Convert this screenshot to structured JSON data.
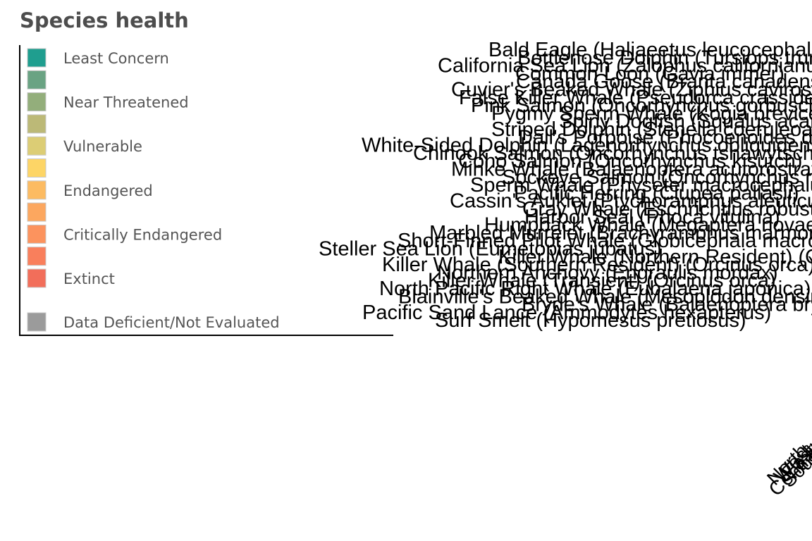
{
  "chart_data": {
    "type": "heatmap",
    "legend": {
      "title": "Species health",
      "placement": "top-left",
      "items": [
        {
          "label": "Least Concern",
          "color": "#1f9e8f"
        },
        {
          "label": "",
          "color": "#6aa383"
        },
        {
          "label": "Near Threatened",
          "color": "#93ae7b"
        },
        {
          "label": "",
          "color": "#bcb977"
        },
        {
          "label": "Vulnerable",
          "color": "#dccd75"
        },
        {
          "label": "",
          "color": "#fdd566"
        },
        {
          "label": "Endangered",
          "color": "#fcbb62"
        },
        {
          "label": "",
          "color": "#fca75f"
        },
        {
          "label": "Critically Endangered",
          "color": "#fc935e"
        },
        {
          "label": "",
          "color": "#f97f5c"
        },
        {
          "label": "Extinct",
          "color": "#f26e5a"
        },
        {
          "label": "Data Deficient/Not Evaluated",
          "color": "#9b9b9b"
        }
      ]
    },
    "y_tick_labels": [
      "Bald Eagle (Haliaeetus leucocephalus)",
      "Bottlenose Dolphin (Tursiops truncatus)",
      "California Sea Lion (Zalophus californianus)",
      "Common Loon (Gavia immer)",
      "Canada Goose (Branta canadensis)",
      "Cuvier's Beaked Whale (Ziphius cavirostris)",
      "False Killer Whale (Pseudorca crassidens)",
      "Pink Salmon (Oncorhynchus gorbuscha)",
      "Pygmy Sperm Whale (Kogia breviceps)",
      "Spiny Dogfish (Squalus acanthias)",
      "Striped Dolphin (Stenella coeruleoalba)",
      "Dall's Porpoise (Phocoenoides dalli)",
      "White-Sided Dolphin (Lagenorhynchus obliquidens)",
      "Chinook Salmon (Oncorhynchus tshawytscha)",
      "Coho Salmon (Oncorhynchus kisutch)",
      "Minke Whale (Balaenoptera acutorostrata)",
      "Sockeye Salmon (Oncorhynchus nerka)",
      "Sperm Whale (Physeter macrocephalus)",
      "Pacific Herring (Clupea pallasii)",
      "Cassin's Auklet (Ptychoramphus aleuticus)",
      "Gray Whale (Eschrichtius robustus)",
      "Harbor Seal (Phoca vitulina)",
      "Humpback Whale (Megaptera novaeangliae)",
      "Marbled Murrelet (Brachyramphus marmoratus)",
      "Short-Finned Pilot Whale (Globicephala macrorhynchus)",
      "Steller Sea Lion (Eumetopias jubatus)",
      "Killer Whale (Northern Resident) (Orcinus orca)",
      "Killer Whale (Southern Resident) (Orcinus orca)",
      "Northern Anchovy (Engraulis mordax)",
      "Killer Whale (Transient) (Orcinus orca)",
      "North Pacific Right Whale (Eubalaena japonica)",
      "Blainville's Beaked Whale (Mesoplodon densirostris)",
      "Bryde's Whale (Balaenoptera brydei)",
      "Pacific Sand Lance (Ammodytes hexapterus)",
      "Surf Smelt (Hypomesus pretiosus)"
    ],
    "x_tick_labels": [
      "North",
      "West",
      "East",
      "Central",
      "South"
    ],
    "values": []
  }
}
